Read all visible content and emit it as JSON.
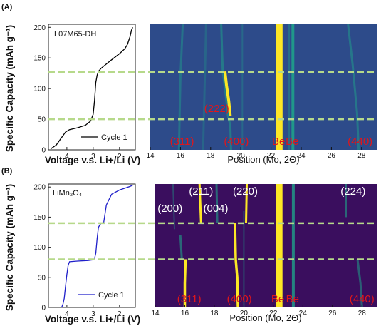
{
  "panel_labels": [
    "(A)",
    "(B)"
  ],
  "colors": {
    "heatmap_bg_A": "#2d4b8a",
    "heatmap_bg_B": "#3a0e5e",
    "peak_teal": "#1fa189",
    "peak_yellow": "#fde725",
    "dash_green": "#b6d98a",
    "red_label": "#e0161b",
    "curve_A": "#000000",
    "curve_B": "#1f1fc9"
  },
  "chart_data": [
    {
      "type": "line",
      "panel": "(A)",
      "sample": "L07M65-DH",
      "legend": "Cycle 1",
      "xlabel": "Voltage v.s. Li+/Li (V)",
      "ylabel": "Specific Capacity (mAh g⁻¹)",
      "xlim": [
        4.7,
        1.4
      ],
      "ylim": [
        0,
        205
      ],
      "x_ticks": [
        "4",
        "3",
        "2"
      ],
      "y_ticks": [
        "0",
        "50",
        "100",
        "150",
        "200"
      ],
      "x": [
        4.6,
        4.4,
        4.2,
        4.05,
        3.9,
        3.6,
        3.3,
        3.1,
        3.0,
        2.95,
        2.9,
        2.85,
        2.8,
        2.7,
        2.5,
        2.3,
        2.0,
        1.8,
        1.7,
        1.6,
        1.55,
        1.5
      ],
      "y": [
        2,
        8,
        20,
        29,
        33,
        36,
        40,
        47,
        58,
        80,
        110,
        122,
        128,
        133,
        140,
        147,
        157,
        165,
        172,
        185,
        195,
        200
      ]
    },
    {
      "type": "heatmap",
      "panel": "(A)",
      "xlabel": "Position (Mo, 2Θ)",
      "xlim": [
        14,
        29
      ],
      "x_ticks": [
        14,
        16,
        18,
        20,
        22,
        24,
        26,
        28
      ],
      "y_range_capacity": [
        0,
        205
      ],
      "dashed_lines_capacity": [
        50,
        127
      ],
      "peak_labels": [
        {
          "text": "(311)",
          "x": 16.1,
          "kind": "bottom"
        },
        {
          "text": "(400)",
          "x": 19.7,
          "kind": "bottom"
        },
        {
          "text": "Be",
          "x": 22.5,
          "kind": "bottom"
        },
        {
          "text": "Be",
          "x": 23.4,
          "kind": "bottom"
        },
        {
          "text": "(440)",
          "x": 27.9,
          "kind": "bottom"
        },
        {
          "text": "(222)",
          "x": 18.4,
          "kind": "mid",
          "capacity": 62
        }
      ]
    },
    {
      "type": "line",
      "panel": "(B)",
      "sample": "LiMn₂O₄",
      "legend": "Cycle 1",
      "xlabel": "Voltage v.s. Li+/Li (V)",
      "ylabel": "Specific Capacity (mAh g⁻¹)",
      "xlim": [
        4.7,
        1.4
      ],
      "ylim": [
        0,
        205
      ],
      "x_ticks": [
        "4",
        "3",
        "2"
      ],
      "y_ticks": [
        "0",
        "50",
        "100",
        "150",
        "200"
      ],
      "x": [
        4.2,
        4.15,
        4.1,
        4.05,
        4.0,
        3.95,
        3.9,
        3.6,
        3.2,
        3.0,
        2.95,
        2.9,
        2.85,
        2.8,
        2.75,
        2.7,
        2.6,
        2.5,
        2.3,
        2.0,
        1.8,
        1.6,
        1.5
      ],
      "y": [
        0,
        5,
        15,
        35,
        55,
        70,
        76,
        77,
        78,
        79,
        81,
        90,
        115,
        133,
        137,
        140,
        141,
        170,
        188,
        195,
        198,
        201,
        203
      ]
    },
    {
      "type": "heatmap",
      "panel": "(B)",
      "xlabel": "Position (Mo, 2Θ)",
      "xlim": [
        14,
        29
      ],
      "x_ticks": [
        14,
        16,
        18,
        20,
        22,
        24,
        26,
        28
      ],
      "y_range_capacity": [
        0,
        205
      ],
      "dashed_lines_capacity": [
        80,
        140
      ],
      "peak_labels": [
        {
          "text": "(311)",
          "x": 16.3,
          "kind": "bottom"
        },
        {
          "text": "(400)",
          "x": 19.7,
          "kind": "bottom"
        },
        {
          "text": "Be",
          "x": 22.3,
          "kind": "bottom"
        },
        {
          "text": "Be",
          "x": 23.3,
          "kind": "bottom"
        },
        {
          "text": "(440)",
          "x": 28.0,
          "kind": "bottom"
        },
        {
          "text": "(211)",
          "x": 17.1,
          "kind": "top",
          "capacity": 187
        },
        {
          "text": "(220)",
          "x": 20.1,
          "kind": "top",
          "capacity": 187
        },
        {
          "text": "(224)",
          "x": 27.4,
          "kind": "top",
          "capacity": 187
        },
        {
          "text": "(200)",
          "x": 15.0,
          "kind": "top",
          "capacity": 159
        },
        {
          "text": "(004)",
          "x": 18.1,
          "kind": "top",
          "capacity": 159
        }
      ]
    }
  ]
}
